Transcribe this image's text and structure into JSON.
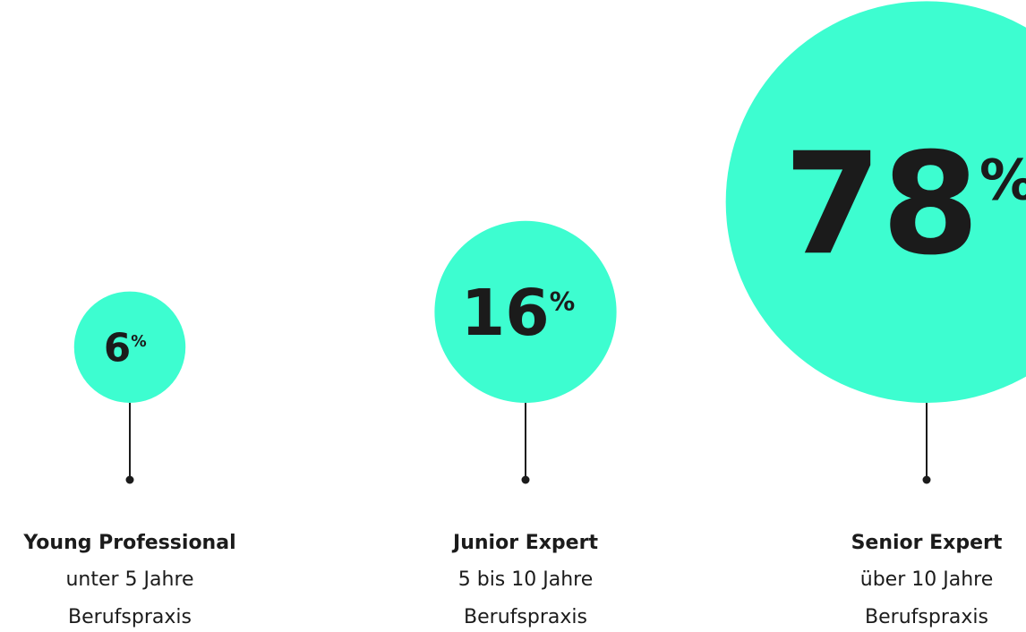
{
  "chart_data": {
    "type": "bubble",
    "categories": [
      "Young Professional",
      "Junior Expert",
      "Senior Expert"
    ],
    "descriptions": [
      [
        "unter 5 Jahre",
        "Berufspraxis"
      ],
      [
        "5 bis 10 Jahre",
        "Berufspraxis"
      ],
      [
        "über 10 Jahre",
        "Berufspraxis"
      ]
    ],
    "values": [
      6,
      16,
      78
    ],
    "unit": "%",
    "color": "#3dfdd0"
  }
}
